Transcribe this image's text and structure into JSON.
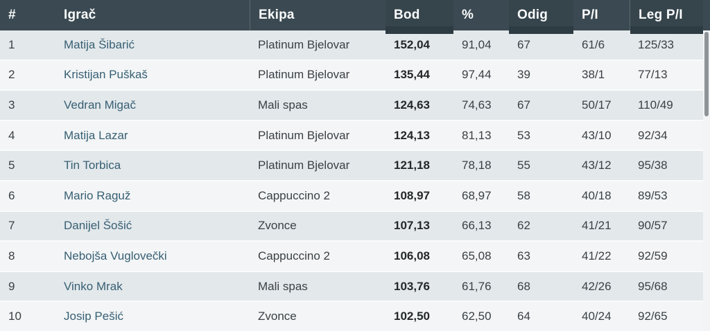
{
  "table": {
    "columns": [
      {
        "key": "rank",
        "label": "#",
        "highlight": false
      },
      {
        "key": "player",
        "label": "Igrač",
        "highlight": false
      },
      {
        "key": "team",
        "label": "Ekipa",
        "highlight": false
      },
      {
        "key": "bod",
        "label": "Bod",
        "highlight": true
      },
      {
        "key": "pct",
        "label": "%",
        "highlight": false
      },
      {
        "key": "odig",
        "label": "Odig",
        "highlight": true
      },
      {
        "key": "pi",
        "label": "P/I",
        "highlight": false
      },
      {
        "key": "legpi",
        "label": "Leg P/I",
        "highlight": true
      }
    ],
    "rows": [
      {
        "rank": "1",
        "player": "Matija Šibarić",
        "team": "Platinum Bjelovar",
        "bod": "152,04",
        "pct": "91,04",
        "odig": "67",
        "pi": "61/6",
        "legpi": "125/33"
      },
      {
        "rank": "2",
        "player": "Kristijan Puškaš",
        "team": "Platinum Bjelovar",
        "bod": "135,44",
        "pct": "97,44",
        "odig": "39",
        "pi": "38/1",
        "legpi": "77/13"
      },
      {
        "rank": "3",
        "player": "Vedran Migač",
        "team": "Mali spas",
        "bod": "124,63",
        "pct": "74,63",
        "odig": "67",
        "pi": "50/17",
        "legpi": "110/49"
      },
      {
        "rank": "4",
        "player": "Matija Lazar",
        "team": "Platinum Bjelovar",
        "bod": "124,13",
        "pct": "81,13",
        "odig": "53",
        "pi": "43/10",
        "legpi": "92/34"
      },
      {
        "rank": "5",
        "player": "Tin Torbica",
        "team": "Platinum Bjelovar",
        "bod": "121,18",
        "pct": "78,18",
        "odig": "55",
        "pi": "43/12",
        "legpi": "95/38"
      },
      {
        "rank": "6",
        "player": "Mario Raguž",
        "team": "Cappuccino 2",
        "bod": "108,97",
        "pct": "68,97",
        "odig": "58",
        "pi": "40/18",
        "legpi": "89/53"
      },
      {
        "rank": "7",
        "player": "Danijel Šošić",
        "team": "Zvonce",
        "bod": "107,13",
        "pct": "66,13",
        "odig": "62",
        "pi": "41/21",
        "legpi": "90/57"
      },
      {
        "rank": "8",
        "player": "Nebojša Vuglovečki",
        "team": "Cappuccino 2",
        "bod": "106,08",
        "pct": "65,08",
        "odig": "63",
        "pi": "41/22",
        "legpi": "92/59"
      },
      {
        "rank": "9",
        "player": "Vinko Mrak",
        "team": "Mali spas",
        "bod": "103,76",
        "pct": "61,76",
        "odig": "68",
        "pi": "42/26",
        "legpi": "95/68"
      },
      {
        "rank": "10",
        "player": "Josip Pešić",
        "team": "Zvonce",
        "bod": "102,50",
        "pct": "62,50",
        "odig": "64",
        "pi": "40/24",
        "legpi": "92/65"
      }
    ]
  },
  "colors": {
    "header_bg": "#3b4a52",
    "header_highlight_tab": "#2d3b42",
    "header_text": "#fafbfb",
    "row_odd_bg": "#e3e8eb",
    "row_even_bg": "#f3f5f6",
    "player_link": "#375f73",
    "value_text": "#3b4045",
    "bold_value_text": "#24282b",
    "scrollbar_thumb": "#8e9397"
  }
}
